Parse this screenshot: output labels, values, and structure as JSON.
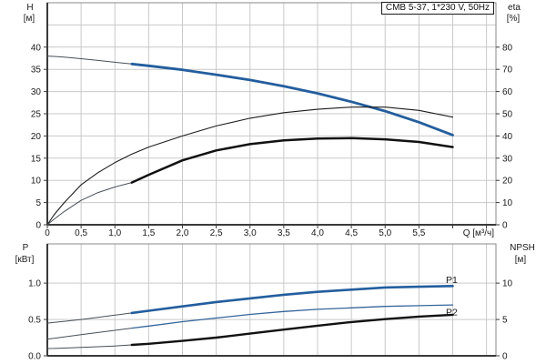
{
  "colors": {
    "curve_blue": "#235e9e",
    "curve_black": "#111111",
    "thin_lead": "#474f57",
    "grid": "#c9c9c9",
    "border": "#8a8a8a",
    "axis": "#3a3a3a",
    "text": "#1a1a1a"
  },
  "chart_data": [
    {
      "type": "line",
      "title": "CMB 5-37, 1*230 V, 50Hz",
      "x_axis": {
        "min": 0,
        "max": 6.64,
        "grid_step": 0.5,
        "tick_values": [
          0,
          0.5,
          1,
          1.5,
          2,
          2.5,
          3,
          3.5,
          4,
          4.5,
          5,
          5.5
        ],
        "tick_texts": [
          "0",
          "0,5",
          "1,0",
          "1,5",
          "2,0",
          "2,5",
          "3,0",
          "3,5",
          "4,0",
          "4,5",
          "5,0",
          "5,5"
        ],
        "unit_label": "Q [м³/ч]"
      },
      "y_left": {
        "label": "H",
        "unit": "[м]",
        "min": 0,
        "max": 50,
        "grid_step": 5,
        "tick_values": [
          0,
          5,
          10,
          15,
          20,
          25,
          30,
          35,
          40
        ],
        "tick_texts": [
          "0",
          "5",
          "10",
          "15",
          "20",
          "25",
          "30",
          "35",
          "40"
        ]
      },
      "y_right": {
        "label": "eta",
        "unit": "[%]",
        "min": 0,
        "max": 100,
        "tick_values": [
          0,
          10,
          20,
          30,
          40,
          50,
          60,
          70,
          80
        ],
        "tick_texts": [
          "0",
          "10",
          "20",
          "30",
          "40",
          "50",
          "60",
          "70",
          "80"
        ]
      },
      "x": [
        0,
        0.1,
        0.25,
        0.5,
        0.75,
        1,
        1.25,
        1.5,
        2,
        2.5,
        3,
        3.5,
        4,
        4.5,
        5,
        5.5,
        6
      ],
      "series": [
        {
          "name": "head-curve",
          "axis": "left",
          "bold_from": 1.25,
          "width": 2.8,
          "color": "#235e9e",
          "thin_color": "#474f57",
          "values": [
            38,
            37.9,
            37.75,
            37.4,
            37.0,
            36.6,
            36.2,
            35.8,
            34.9,
            33.8,
            32.6,
            31.2,
            29.6,
            27.7,
            25.6,
            23.1,
            20.2
          ]
        },
        {
          "name": "eta-pump-curve",
          "axis": "right",
          "width": 1.1,
          "color": "#1c1c1c",
          "values": [
            0,
            4.5,
            10,
            18,
            23.5,
            28,
            31.8,
            35,
            40,
            44.5,
            48,
            50.5,
            52,
            53,
            53,
            51.5,
            48.5
          ]
        },
        {
          "name": "eta-total-curve",
          "axis": "right",
          "bold_from": 1.25,
          "width": 2.5,
          "color": "#111111",
          "thin_color": "#474f57",
          "values": [
            0,
            2.5,
            6,
            11,
            14.5,
            17,
            19,
            22.5,
            29,
            33.5,
            36.3,
            38,
            38.8,
            39,
            38.5,
            37.3,
            35
          ]
        }
      ],
      "annotations": []
    },
    {
      "type": "line",
      "x_axis": {
        "min": 0,
        "max": 6.64,
        "grid_step": 0.5
      },
      "y_left": {
        "label": "P",
        "unit": "[кВт]",
        "min": 0,
        "max": 1.54,
        "grid_step": 0.5,
        "tick_values": [
          0,
          0.5,
          1
        ],
        "tick_texts": [
          "0.0",
          "0.5",
          "1.0"
        ]
      },
      "y_right": {
        "label": "NPSH",
        "unit": "[м]",
        "min": 0,
        "max": 15.4,
        "tick_values": [
          0,
          5,
          10
        ],
        "tick_texts": [
          "0",
          "5",
          "10"
        ]
      },
      "x": [
        0,
        0.1,
        0.25,
        0.5,
        0.75,
        1,
        1.25,
        1.5,
        2,
        2.5,
        3,
        3.5,
        4,
        4.5,
        5,
        5.5,
        6
      ],
      "series": [
        {
          "name": "p1-curve",
          "axis": "left",
          "bold_from": 1.25,
          "width": 2.6,
          "color": "#235e9e",
          "thin_color": "#474f57",
          "values": [
            0.45,
            0.46,
            0.475,
            0.5,
            0.53,
            0.56,
            0.59,
            0.62,
            0.68,
            0.74,
            0.79,
            0.84,
            0.88,
            0.91,
            0.94,
            0.95,
            0.96
          ]
        },
        {
          "name": "p2-curve",
          "axis": "left",
          "bold_from": 1.25,
          "width": 1.3,
          "color": "#35659c",
          "thin_color": "#474f57",
          "values": [
            0.23,
            0.24,
            0.26,
            0.29,
            0.32,
            0.35,
            0.38,
            0.41,
            0.47,
            0.52,
            0.57,
            0.61,
            0.64,
            0.66,
            0.68,
            0.69,
            0.7
          ]
        },
        {
          "name": "npsh-curve",
          "axis": "right",
          "bold_from": 1.25,
          "width": 2.4,
          "color": "#111111",
          "thin_color": "#474f57",
          "values": [
            1.0,
            1.02,
            1.07,
            1.15,
            1.25,
            1.35,
            1.5,
            1.65,
            2.05,
            2.5,
            3.05,
            3.6,
            4.15,
            4.65,
            5.05,
            5.4,
            5.65
          ]
        }
      ],
      "annotations": [
        {
          "text": "P1",
          "x": 5.9,
          "y": 1.0,
          "color": "#235e9e"
        },
        {
          "text": "P2",
          "x": 5.9,
          "y": 0.56,
          "color": "#235e9e"
        }
      ]
    }
  ]
}
